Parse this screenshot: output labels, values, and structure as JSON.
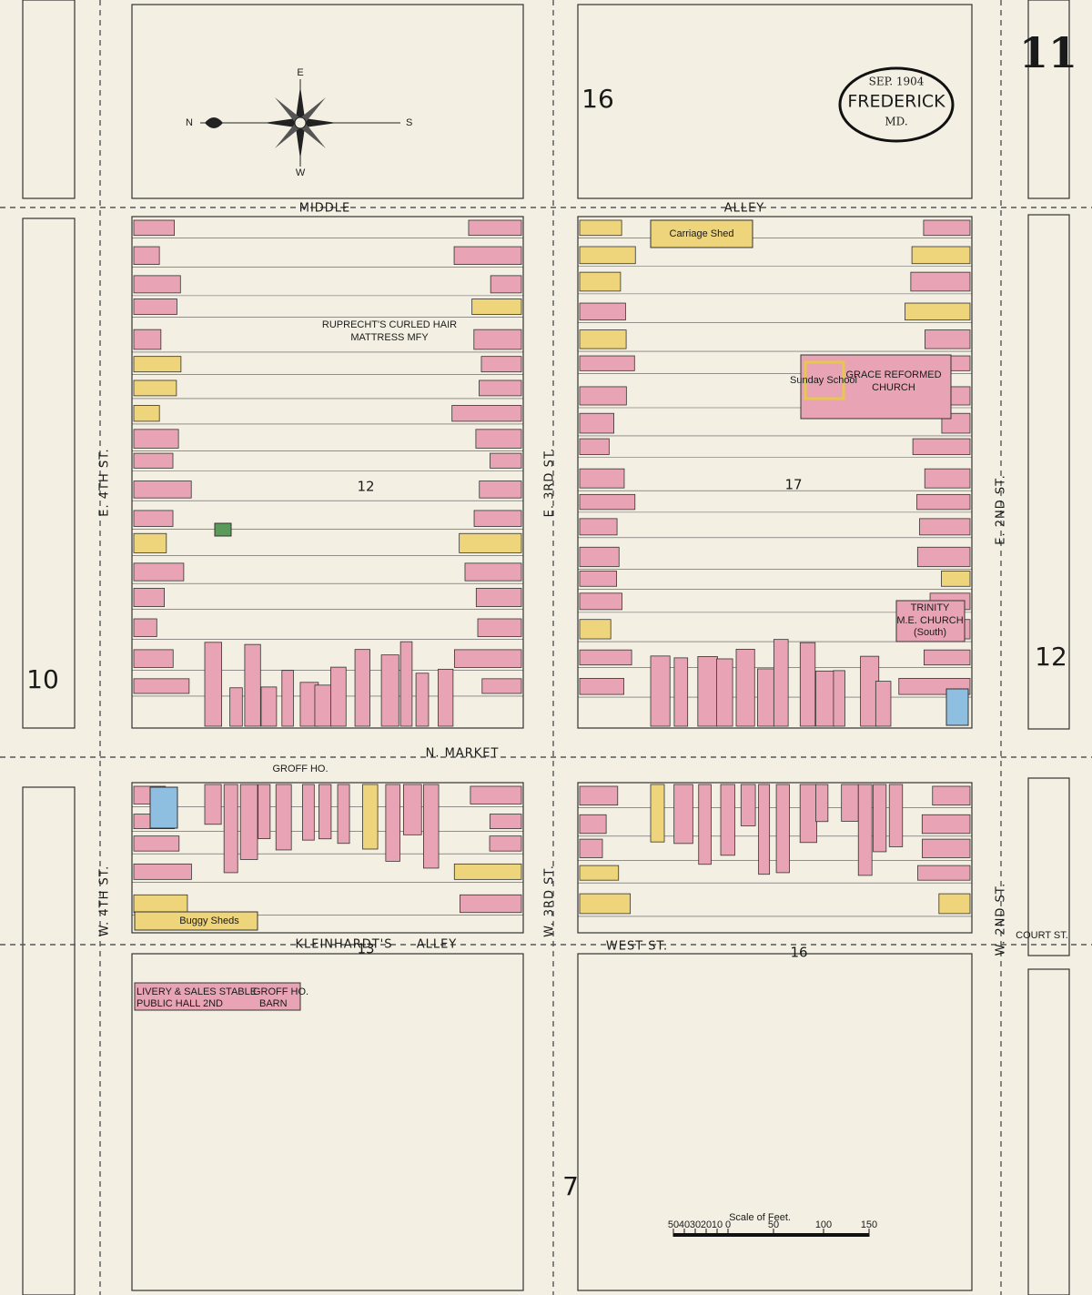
{
  "sheet_number": "11",
  "cartouche": {
    "date": "SEP. 1904",
    "city": "FREDERICK",
    "state": "MD."
  },
  "compass": {
    "north": "N",
    "south": "S",
    "east": "E",
    "west": "W"
  },
  "adjacent_sheets": {
    "top": "16",
    "left": "10",
    "right": "12",
    "bottom": "7"
  },
  "blocks": [
    "12",
    "17",
    "13",
    "16"
  ],
  "streets": {
    "middle_alley_west": "MIDDLE",
    "middle_alley_east": "ALLEY",
    "market": "N. MARKET",
    "groff": "GROFF HO.",
    "kleinhardts": "KLEINHARDT'S",
    "kleinhardts_alley": "ALLEY",
    "west": "WEST ST.",
    "court": "COURT ST.",
    "e4th": "E. 4TH ST.",
    "w4th": "W. 4TH ST.",
    "e3rd": "E. 3RD ST.",
    "w3rd": "W. 3RD ST.",
    "e2nd": "E. 2ND ST.",
    "w2nd": "W. 2ND ST."
  },
  "buildings": {
    "ruprecht": "RUPRECHT'S CURLED HAIR",
    "ruprecht_2": "MATTRESS MFY",
    "grace": "GRACE REFORMED",
    "grace_2": "CHURCH",
    "sunday_school": "Sunday School",
    "trinity": "TRINITY",
    "trinity_2": "M.E. CHURCH",
    "trinity_3": "(South)",
    "carriage_shed": "Carriage Shed",
    "livery": "LIVERY & SALES STABLE",
    "public_hall": "PUBLIC HALL 2ND",
    "groff_barn": "GROFF HO.",
    "groff_barn_2": "BARN",
    "buggy_sheds": "Buggy Sheds"
  },
  "scale": {
    "title": "Scale of Feet.",
    "ticks": [
      "50",
      "40",
      "30",
      "20",
      "10",
      "0",
      "50",
      "100",
      "150"
    ]
  }
}
